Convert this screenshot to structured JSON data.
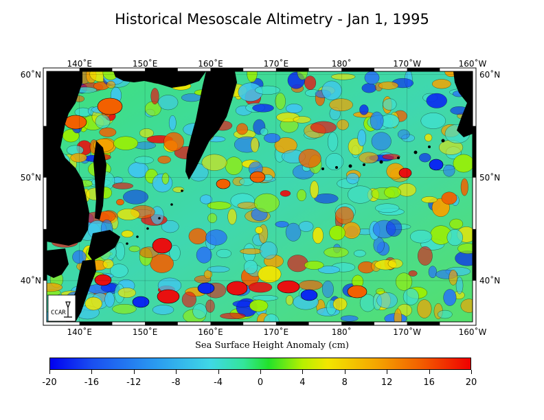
{
  "title": "Historical Mesoscale Altimetry - Jan 1, 1995",
  "map": {
    "lon_labels": [
      "140˚E",
      "150˚E",
      "160˚E",
      "170˚E",
      "180˚",
      "170˚W",
      "160˚W"
    ],
    "lat_labels_left": [
      "60˚N",
      "50˚N",
      "40˚N"
    ],
    "lat_labels_right": [
      "60˚N",
      "50˚N",
      "40˚N"
    ],
    "lon_range": [
      135,
      200
    ],
    "lat_range": [
      36,
      60.3
    ],
    "land_color": "#000000",
    "logo_letters": "CCAR"
  },
  "colorbar": {
    "label": "Sea Surface Height Anomaly (cm)",
    "ticks": [
      "-20",
      "-16",
      "-12",
      "-8",
      "-4",
      "0",
      "4",
      "8",
      "12",
      "16",
      "20"
    ],
    "range": [
      -20,
      20
    ],
    "colors": [
      "#0000f0",
      "#2a9af0",
      "#3fd7e6",
      "#22e12a",
      "#f2e600",
      "#f26000",
      "#f00000"
    ]
  }
}
